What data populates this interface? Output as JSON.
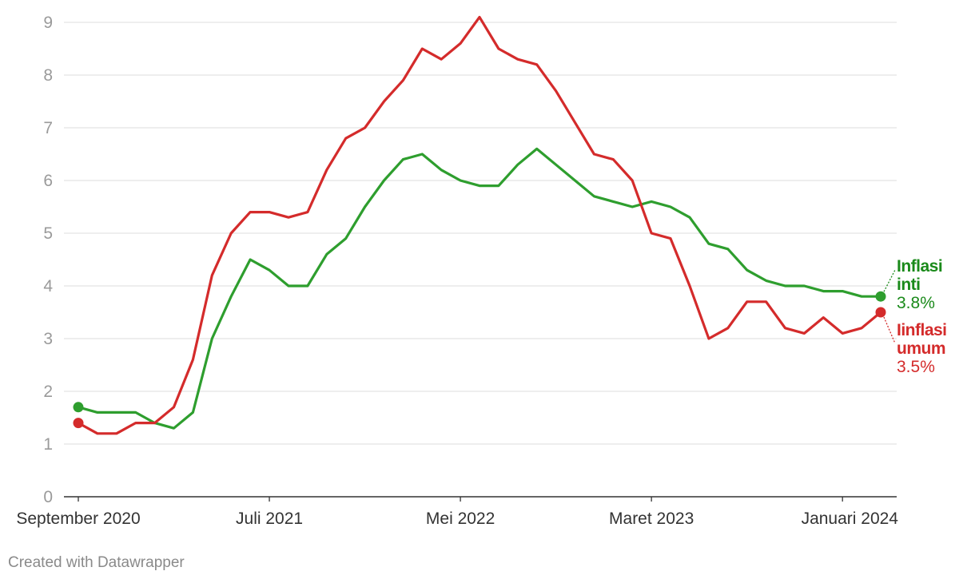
{
  "chart_data": {
    "type": "line",
    "title": "",
    "xlabel": "",
    "ylabel": "",
    "ylim": [
      0,
      9
    ],
    "yticks": [
      "0",
      "1",
      "2",
      "3",
      "4",
      "5",
      "6",
      "7",
      "8",
      "9"
    ],
    "x": [
      "2020-09",
      "2020-10",
      "2020-11",
      "2020-12",
      "2021-01",
      "2021-02",
      "2021-03",
      "2021-04",
      "2021-05",
      "2021-06",
      "2021-07",
      "2021-08",
      "2021-09",
      "2021-10",
      "2021-11",
      "2021-12",
      "2022-01",
      "2022-02",
      "2022-03",
      "2022-04",
      "2022-05",
      "2022-06",
      "2022-07",
      "2022-08",
      "2022-09",
      "2022-10",
      "2022-11",
      "2022-12",
      "2023-01",
      "2023-02",
      "2023-03",
      "2023-04",
      "2023-05",
      "2023-06",
      "2023-07",
      "2023-08",
      "2023-09",
      "2023-10",
      "2023-11",
      "2023-12",
      "2024-01",
      "2024-02",
      "2024-03"
    ],
    "xticks": [
      {
        "date": "2020-09",
        "label": "September 2020"
      },
      {
        "date": "2021-07",
        "label": "Juli 2021"
      },
      {
        "date": "2022-05",
        "label": "Mei 2022"
      },
      {
        "date": "2023-03",
        "label": "Maret 2023"
      },
      {
        "date": "2024-01",
        "label": "Januari 2024"
      }
    ],
    "grid": true,
    "series": [
      {
        "name": "Inflasi inti",
        "label_lines": [
          "Inflasi",
          "inti"
        ],
        "value_label": "3.8%",
        "color": "#2e9e2e",
        "label_color": "#1a8a1a",
        "values": [
          1.7,
          1.6,
          1.6,
          1.6,
          1.4,
          1.3,
          1.6,
          3.0,
          3.8,
          4.5,
          4.3,
          4.0,
          4.0,
          4.6,
          4.9,
          5.5,
          6.0,
          6.4,
          6.5,
          6.2,
          6.0,
          5.9,
          5.9,
          6.3,
          6.6,
          6.3,
          6.0,
          5.7,
          5.6,
          5.5,
          5.6,
          5.5,
          5.3,
          4.8,
          4.7,
          4.3,
          4.1,
          4.0,
          4.0,
          3.9,
          3.9,
          3.8,
          3.8
        ]
      },
      {
        "name": "Iinflasi umum",
        "label_lines": [
          "Iinflasi",
          "umum"
        ],
        "value_label": "3.5%",
        "color": "#d42b2b",
        "label_color": "#d42b2b",
        "values": [
          1.4,
          1.2,
          1.2,
          1.4,
          1.4,
          1.7,
          2.6,
          4.2,
          5.0,
          5.4,
          5.4,
          5.3,
          5.4,
          6.2,
          6.8,
          7.0,
          7.5,
          7.9,
          8.5,
          8.3,
          8.6,
          9.1,
          8.5,
          8.3,
          8.2,
          7.7,
          7.1,
          6.5,
          6.4,
          6.0,
          5.0,
          4.9,
          4.0,
          3.0,
          3.2,
          3.7,
          3.7,
          3.2,
          3.1,
          3.4,
          3.1,
          3.2,
          3.5
        ]
      }
    ]
  },
  "footer": {
    "credit": "Created with Datawrapper"
  }
}
